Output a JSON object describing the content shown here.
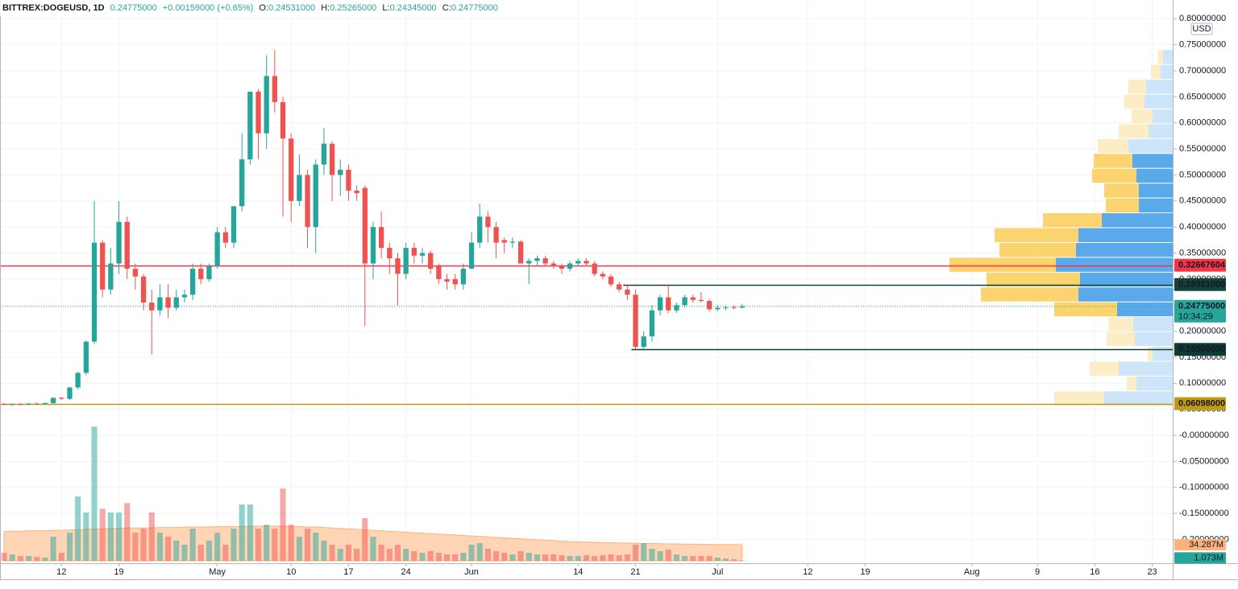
{
  "chart_data": {
    "type": "candlestick",
    "header": {
      "symbol": "BITTREX:DOGEUSD, 1D",
      "price": "0.24775000",
      "change": "+0.00159000 (+0.65%)",
      "ohlc": [
        {
          "key": "O:",
          "value": "0.24531000"
        },
        {
          "key": "H:",
          "value": "0.25265000"
        },
        {
          "key": "L:",
          "value": "0.24345000"
        },
        {
          "key": "C:",
          "value": "0.24775000"
        }
      ]
    },
    "currency": "USD",
    "x": [
      "04-05",
      "04-06",
      "04-07",
      "04-08",
      "04-09",
      "04-10",
      "04-11",
      "04-12",
      "04-13",
      "04-14",
      "04-15",
      "04-16",
      "04-17",
      "04-18",
      "04-19",
      "04-20",
      "04-21",
      "04-22",
      "04-23",
      "04-24",
      "04-25",
      "04-26",
      "04-27",
      "04-28",
      "04-29",
      "04-30",
      "05-01",
      "05-02",
      "05-03",
      "05-04",
      "05-05",
      "05-06",
      "05-07",
      "05-08",
      "05-09",
      "05-10",
      "05-11",
      "05-12",
      "05-13",
      "05-14",
      "05-15",
      "05-16",
      "05-17",
      "05-18",
      "05-19",
      "05-20",
      "05-21",
      "05-22",
      "05-23",
      "05-24",
      "05-25",
      "05-26",
      "05-27",
      "05-28",
      "05-29",
      "05-30",
      "05-31",
      "06-01",
      "06-02",
      "06-03",
      "06-04",
      "06-05",
      "06-06",
      "06-07",
      "06-08",
      "06-09",
      "06-10",
      "06-11",
      "06-12",
      "06-13",
      "06-14",
      "06-15",
      "06-16",
      "06-17",
      "06-18",
      "06-19",
      "06-20",
      "06-21",
      "06-22",
      "06-23",
      "06-24",
      "06-25",
      "06-26",
      "06-27",
      "06-28",
      "06-29",
      "06-30",
      "07-01",
      "07-02",
      "07-03",
      "07-04"
    ],
    "open": [
      0.06,
      0.059,
      0.06,
      0.059,
      0.061,
      0.06,
      0.062,
      0.072,
      0.07,
      0.092,
      0.12,
      0.18,
      0.37,
      0.28,
      0.33,
      0.41,
      0.32,
      0.305,
      0.255,
      0.24,
      0.265,
      0.245,
      0.265,
      0.27,
      0.32,
      0.3,
      0.325,
      0.39,
      0.37,
      0.44,
      0.53,
      0.66,
      0.58,
      0.69,
      0.64,
      0.57,
      0.45,
      0.5,
      0.4,
      0.52,
      0.56,
      0.5,
      0.51,
      0.47,
      0.475,
      0.33,
      0.4,
      0.36,
      0.34,
      0.31,
      0.36,
      0.345,
      0.35,
      0.325,
      0.3,
      0.3,
      0.29,
      0.32,
      0.37,
      0.42,
      0.4,
      0.375,
      0.37,
      0.372,
      0.33,
      0.335,
      0.34,
      0.33,
      0.325,
      0.32,
      0.33,
      0.335,
      0.33,
      0.31,
      0.305,
      0.29,
      0.28,
      0.27,
      0.17,
      0.19,
      0.24,
      0.265,
      0.24,
      0.25,
      0.265,
      0.26,
      0.258,
      0.242,
      0.245,
      0.246,
      0.24531
    ],
    "high": [
      0.062,
      0.061,
      0.062,
      0.062,
      0.063,
      0.063,
      0.073,
      0.074,
      0.093,
      0.122,
      0.182,
      0.45,
      0.375,
      0.36,
      0.45,
      0.42,
      0.33,
      0.31,
      0.28,
      0.29,
      0.29,
      0.28,
      0.28,
      0.33,
      0.33,
      0.33,
      0.4,
      0.4,
      0.44,
      0.58,
      0.66,
      0.665,
      0.73,
      0.74,
      0.65,
      0.58,
      0.54,
      0.51,
      0.53,
      0.59,
      0.565,
      0.53,
      0.52,
      0.48,
      0.48,
      0.41,
      0.43,
      0.37,
      0.35,
      0.37,
      0.37,
      0.36,
      0.355,
      0.33,
      0.31,
      0.31,
      0.33,
      0.39,
      0.445,
      0.43,
      0.41,
      0.38,
      0.38,
      0.375,
      0.34,
      0.345,
      0.345,
      0.335,
      0.33,
      0.335,
      0.34,
      0.34,
      0.335,
      0.315,
      0.31,
      0.295,
      0.29,
      0.28,
      0.2,
      0.25,
      0.27,
      0.29,
      0.255,
      0.27,
      0.27,
      0.275,
      0.262,
      0.25,
      0.25,
      0.25,
      0.25265
    ],
    "low": [
      0.058,
      0.057,
      0.058,
      0.058,
      0.059,
      0.059,
      0.06,
      0.068,
      0.068,
      0.088,
      0.115,
      0.175,
      0.265,
      0.27,
      0.31,
      0.3,
      0.28,
      0.24,
      0.155,
      0.23,
      0.225,
      0.24,
      0.255,
      0.26,
      0.29,
      0.295,
      0.32,
      0.36,
      0.36,
      0.43,
      0.52,
      0.53,
      0.55,
      0.62,
      0.42,
      0.41,
      0.44,
      0.36,
      0.35,
      0.5,
      0.45,
      0.46,
      0.45,
      0.45,
      0.21,
      0.3,
      0.34,
      0.31,
      0.25,
      0.3,
      0.33,
      0.33,
      0.31,
      0.29,
      0.28,
      0.28,
      0.28,
      0.32,
      0.36,
      0.37,
      0.34,
      0.35,
      0.36,
      0.33,
      0.29,
      0.325,
      0.325,
      0.32,
      0.31,
      0.315,
      0.325,
      0.325,
      0.305,
      0.3,
      0.285,
      0.275,
      0.26,
      0.165,
      0.165,
      0.18,
      0.23,
      0.235,
      0.235,
      0.245,
      0.255,
      0.255,
      0.238,
      0.238,
      0.24,
      0.242,
      0.24345
    ],
    "close": [
      0.059,
      0.06,
      0.059,
      0.061,
      0.06,
      0.062,
      0.072,
      0.07,
      0.092,
      0.12,
      0.18,
      0.37,
      0.28,
      0.33,
      0.41,
      0.32,
      0.305,
      0.255,
      0.24,
      0.265,
      0.245,
      0.265,
      0.27,
      0.32,
      0.3,
      0.325,
      0.39,
      0.37,
      0.44,
      0.53,
      0.66,
      0.58,
      0.69,
      0.64,
      0.57,
      0.45,
      0.5,
      0.4,
      0.52,
      0.56,
      0.5,
      0.51,
      0.47,
      0.465,
      0.33,
      0.4,
      0.36,
      0.34,
      0.31,
      0.36,
      0.345,
      0.35,
      0.32,
      0.3,
      0.295,
      0.29,
      0.32,
      0.37,
      0.42,
      0.4,
      0.37,
      0.37,
      0.372,
      0.33,
      0.335,
      0.34,
      0.33,
      0.325,
      0.32,
      0.33,
      0.335,
      0.33,
      0.31,
      0.305,
      0.29,
      0.28,
      0.27,
      0.17,
      0.19,
      0.24,
      0.265,
      0.24,
      0.25,
      0.265,
      0.26,
      0.258,
      0.242,
      0.245,
      0.246,
      0.2453,
      0.24775
    ],
    "volume": [
      17100000,
      13700000,
      10300000,
      10300000,
      8600000,
      6900000,
      51400000,
      17100000,
      60000000,
      137000000,
      103000000,
      286000000,
      111000000,
      103000000,
      103000000,
      123000000,
      60000000,
      68600000,
      103000000,
      60000000,
      51400000,
      42900000,
      34300000,
      68600000,
      34300000,
      42900000,
      60000000,
      34300000,
      68600000,
      120000000,
      120000000,
      68600000,
      77100000,
      68600000,
      154000000,
      77100000,
      51400000,
      68600000,
      60000000,
      42900000,
      34300000,
      25700000,
      34300000,
      25700000,
      90800000,
      51400000,
      34300000,
      25700000,
      34300000,
      25700000,
      20600000,
      17100000,
      20600000,
      17100000,
      13700000,
      13700000,
      17100000,
      34300000,
      37700000,
      25700000,
      20600000,
      17100000,
      13700000,
      20600000,
      17100000,
      13700000,
      13700000,
      13700000,
      12000000,
      10300000,
      10300000,
      12000000,
      10300000,
      12000000,
      13700000,
      12000000,
      13700000,
      34300000,
      37700000,
      25700000,
      20600000,
      24000000,
      13700000,
      10300000,
      10300000,
      10300000,
      10300000,
      6900000,
      5100000,
      3400000,
      1073000
    ],
    "volume_ma": [
      63000000,
      63000000,
      63000000,
      64000000,
      64000000,
      64000000,
      65000000,
      65000000,
      66000000,
      66000000,
      67000000,
      68000000,
      68000000,
      69000000,
      69000000,
      70000000,
      70000000,
      70000000,
      70000000,
      71000000,
      71000000,
      71000000,
      72000000,
      72000000,
      72000000,
      72000000,
      73000000,
      73000000,
      73000000,
      73000000,
      74000000,
      74000000,
      74000000,
      74000000,
      74000000,
      73000000,
      73000000,
      72000000,
      72000000,
      71000000,
      70000000,
      69000000,
      68000000,
      67000000,
      66000000,
      65000000,
      64000000,
      63000000,
      62000000,
      61000000,
      60000000,
      59000000,
      58000000,
      57000000,
      56000000,
      55000000,
      54000000,
      53000000,
      52000000,
      51000000,
      50000000,
      49000000,
      48000000,
      47000000,
      46000000,
      45000000,
      44000000,
      43000000,
      42000000,
      41000000,
      40000000,
      40000000,
      39500000,
      39000000,
      38500000,
      38000000,
      38000000,
      37500000,
      37000000,
      37000000,
      36500000,
      36000000,
      36000000,
      35500000,
      35500000,
      35000000,
      35000000,
      34500000,
      34500000,
      34400000,
      34287000
    ],
    "volume_label": "1.073M",
    "volume_ma_label": "34.287M",
    "up_color": "#26a69a",
    "down_color": "#ef5350",
    "volume_ma_color": "#ffb27a",
    "xlim": [
      "04-05",
      "08-25"
    ],
    "xticks": [
      {
        "value": "04-12",
        "label": "12"
      },
      {
        "value": "04-19",
        "label": "19"
      },
      {
        "value": "05-01",
        "label": "May"
      },
      {
        "value": "05-10",
        "label": "10"
      },
      {
        "value": "05-17",
        "label": "17"
      },
      {
        "value": "05-24",
        "label": "24"
      },
      {
        "value": "06-01",
        "label": "Jun"
      },
      {
        "value": "06-14",
        "label": "14"
      },
      {
        "value": "06-21",
        "label": "21"
      },
      {
        "value": "07-01",
        "label": "Jul"
      },
      {
        "value": "07-12",
        "label": "12"
      },
      {
        "value": "07-19",
        "label": "19"
      },
      {
        "value": "08-01",
        "label": "Aug"
      },
      {
        "value": "08-09",
        "label": "9"
      },
      {
        "value": "08-16",
        "label": "16"
      },
      {
        "value": "08-23",
        "label": "23"
      }
    ],
    "ylim": [
      -0.241,
      0.836
    ],
    "yticks": [
      {
        "value": 0.8,
        "label": "0.80000000"
      },
      {
        "value": 0.75,
        "label": "0.75000000"
      },
      {
        "value": 0.7,
        "label": "0.70000000"
      },
      {
        "value": 0.65,
        "label": "0.65000000"
      },
      {
        "value": 0.6,
        "label": "0.60000000"
      },
      {
        "value": 0.55,
        "label": "0.55000000"
      },
      {
        "value": 0.5,
        "label": "0.50000000"
      },
      {
        "value": 0.45,
        "label": "0.45000000"
      },
      {
        "value": 0.4,
        "label": "0.40000000"
      },
      {
        "value": 0.35,
        "label": "0.35000000"
      },
      {
        "value": 0.3,
        "label": "0.30000000"
      },
      {
        "value": 0.25,
        "label": "0.25000000"
      },
      {
        "value": 0.2,
        "label": "0.20000000"
      },
      {
        "value": 0.15,
        "label": "0.15000000"
      },
      {
        "value": 0.1,
        "label": "0.10000000"
      },
      {
        "value": 0.05,
        "label": "0.05000000"
      },
      {
        "value": 0,
        "label": "-0.00000000"
      },
      {
        "value": -0.05,
        "label": "-0.05000000"
      },
      {
        "value": -0.1,
        "label": "-0.10000000"
      },
      {
        "value": -0.15,
        "label": "-0.15000000"
      },
      {
        "value": -0.2,
        "label": "-0.20000000"
      }
    ],
    "volume_ylim": [
      0,
      1195000000
    ],
    "grid": true,
    "current_price": {
      "value": 0.24775,
      "label": "0.24775000",
      "countdown": "10:34:29",
      "color": "#26a69a"
    },
    "levels": [
      {
        "value": 0.32667604,
        "label": "0.32667604",
        "color": "#f23645"
      },
      {
        "value": 0.28951,
        "label": "0.28951000",
        "color": "#12423a",
        "from": "06-20"
      },
      {
        "value": 0.165,
        "label": "0.16500000",
        "color": "#0e3b33",
        "from": "06-21"
      },
      {
        "value": 0.06098,
        "label": "0.06098000",
        "color": "#bf9a12"
      }
    ],
    "volume_profile": {
      "xlim": [
        0,
        280
      ],
      "value_area": [
        0.227,
        0.5405
      ],
      "up_color": "#5aa9ea",
      "down_color": "#fbd36f",
      "up_color_outside": "#cde5f8",
      "down_color_outside": "#fdedc7",
      "rows": [
        {
          "low": 0.056,
          "high": 0.0845,
          "up": 85,
          "down": 62
        },
        {
          "low": 0.0845,
          "high": 0.113,
          "up": 45,
          "down": 12
        },
        {
          "low": 0.113,
          "high": 0.1415,
          "up": 67,
          "down": 36
        },
        {
          "low": 0.1415,
          "high": 0.17,
          "up": 25,
          "down": 6
        },
        {
          "low": 0.17,
          "high": 0.1985,
          "up": 47,
          "down": 35
        },
        {
          "low": 0.1985,
          "high": 0.227,
          "up": 49,
          "down": 31
        },
        {
          "low": 0.227,
          "high": 0.2555,
          "up": 69,
          "down": 78
        },
        {
          "low": 0.2555,
          "high": 0.284,
          "up": 117,
          "down": 121
        },
        {
          "low": 0.284,
          "high": 0.3125,
          "up": 115,
          "down": 116
        },
        {
          "low": 0.3125,
          "high": 0.341,
          "up": 145,
          "down": 132
        },
        {
          "low": 0.341,
          "high": 0.3695,
          "up": 120,
          "down": 95
        },
        {
          "low": 0.3695,
          "high": 0.398,
          "up": 117,
          "down": 104
        },
        {
          "low": 0.398,
          "high": 0.4265,
          "up": 88,
          "down": 73
        },
        {
          "low": 0.4265,
          "high": 0.455,
          "up": 42,
          "down": 41
        },
        {
          "low": 0.455,
          "high": 0.4835,
          "up": 42,
          "down": 43
        },
        {
          "low": 0.4835,
          "high": 0.512,
          "up": 45,
          "down": 55
        },
        {
          "low": 0.512,
          "high": 0.5405,
          "up": 50,
          "down": 48
        },
        {
          "low": 0.5405,
          "high": 0.569,
          "up": 55,
          "down": 38
        },
        {
          "low": 0.569,
          "high": 0.5975,
          "up": 30,
          "down": 37
        },
        {
          "low": 0.5975,
          "high": 0.626,
          "up": 25,
          "down": 26
        },
        {
          "low": 0.626,
          "high": 0.6545,
          "up": 35,
          "down": 25
        },
        {
          "low": 0.6545,
          "high": 0.683,
          "up": 33,
          "down": 22
        },
        {
          "low": 0.683,
          "high": 0.7115,
          "up": 15,
          "down": 12
        },
        {
          "low": 0.7115,
          "high": 0.74,
          "up": 12,
          "down": 6
        }
      ]
    }
  }
}
